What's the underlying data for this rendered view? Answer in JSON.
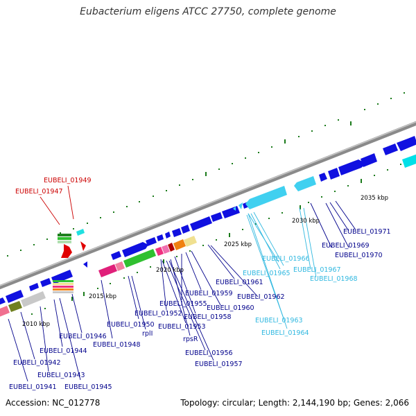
{
  "title": "Eubacterium eligens ATCC 27750, complete genome",
  "accession": "Accession: NC_012778",
  "topology": "Topology: circular; Length: 2,144,190 bp; Genes: 2,066",
  "colors": {
    "backbone": "#8a8a8a",
    "cds": "#1010e0",
    "rna": "#40d0f0",
    "label_default": "#00008b",
    "label_rna": "#30b8e0",
    "label_highlight": "#cc0000",
    "tick": "#1a7a1a"
  },
  "scale_labels": [
    "2010 kbp",
    "2015 kbp",
    "2020 kbp",
    "2025 kbp",
    "2030 kbp",
    "2035 kbp"
  ],
  "gene_labels": [
    {
      "text": "EUBELI_01949",
      "color": "highlight"
    },
    {
      "text": "EUBELI_01947",
      "color": "highlight"
    },
    {
      "text": "EUBELI_01971",
      "color": "default"
    },
    {
      "text": "EUBELI_01969",
      "color": "default"
    },
    {
      "text": "EUBELI_01970",
      "color": "default"
    },
    {
      "text": "EUBELI_01966",
      "color": "rna"
    },
    {
      "text": "EUBELI_01965",
      "color": "rna"
    },
    {
      "text": "EUBELI_01967",
      "color": "rna"
    },
    {
      "text": "EUBELI_01968",
      "color": "rna"
    },
    {
      "text": "EUBELI_01961",
      "color": "default"
    },
    {
      "text": "EUBELI_01962",
      "color": "default"
    },
    {
      "text": "EUBELI_01959",
      "color": "default"
    },
    {
      "text": "EUBELI_01955",
      "color": "default"
    },
    {
      "text": "EUBELI_01960",
      "color": "default"
    },
    {
      "text": "EUBELI_01952",
      "color": "default"
    },
    {
      "text": "EUBELI_01958",
      "color": "default"
    },
    {
      "text": "EUBELI_01963",
      "color": "rna"
    },
    {
      "text": "EUBELI_01964",
      "color": "rna"
    },
    {
      "text": "EUBELI_01950",
      "color": "default"
    },
    {
      "text": "rplI",
      "color": "default"
    },
    {
      "text": "EUBELI_01953",
      "color": "default"
    },
    {
      "text": "rpsR",
      "color": "default"
    },
    {
      "text": "EUBELI_01946",
      "color": "default"
    },
    {
      "text": "EUBELI_01948",
      "color": "default"
    },
    {
      "text": "EUBELI_01944",
      "color": "default"
    },
    {
      "text": "EUBELI_01956",
      "color": "default"
    },
    {
      "text": "EUBELI_01957",
      "color": "default"
    },
    {
      "text": "EUBELI_01942",
      "color": "default"
    },
    {
      "text": "EUBELI_01943",
      "color": "default"
    },
    {
      "text": "EUBELI_01941",
      "color": "default"
    },
    {
      "text": "EUBELI_01945",
      "color": "default"
    }
  ]
}
